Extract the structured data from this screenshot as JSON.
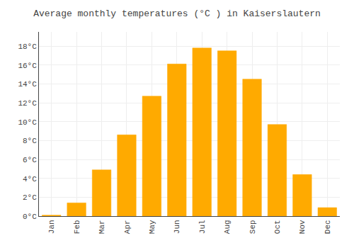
{
  "chart_data": {
    "type": "bar",
    "title": "Average monthly temperatures (°C ) in Kaiserslautern",
    "categories": [
      "Jan",
      "Feb",
      "Mar",
      "Apr",
      "May",
      "Jun",
      "Jul",
      "Aug",
      "Sep",
      "Oct",
      "Nov",
      "Dec"
    ],
    "values": [
      0.1,
      1.4,
      4.9,
      8.6,
      12.7,
      16.1,
      17.8,
      17.5,
      14.5,
      9.7,
      4.4,
      0.9
    ],
    "color": "#FFAA00",
    "ylim": [
      0,
      19.5
    ],
    "yticks": [
      {
        "value": 0,
        "label": "0°C"
      },
      {
        "value": 2,
        "label": "2°C"
      },
      {
        "value": 4,
        "label": "4°C"
      },
      {
        "value": 6,
        "label": "6°C"
      },
      {
        "value": 8,
        "label": "8°C"
      },
      {
        "value": 10,
        "label": "10°C"
      },
      {
        "value": 12,
        "label": "12°C"
      },
      {
        "value": 14,
        "label": "14°C"
      },
      {
        "value": 16,
        "label": "16°C"
      },
      {
        "value": 18,
        "label": "18°C"
      }
    ],
    "grid": true
  }
}
